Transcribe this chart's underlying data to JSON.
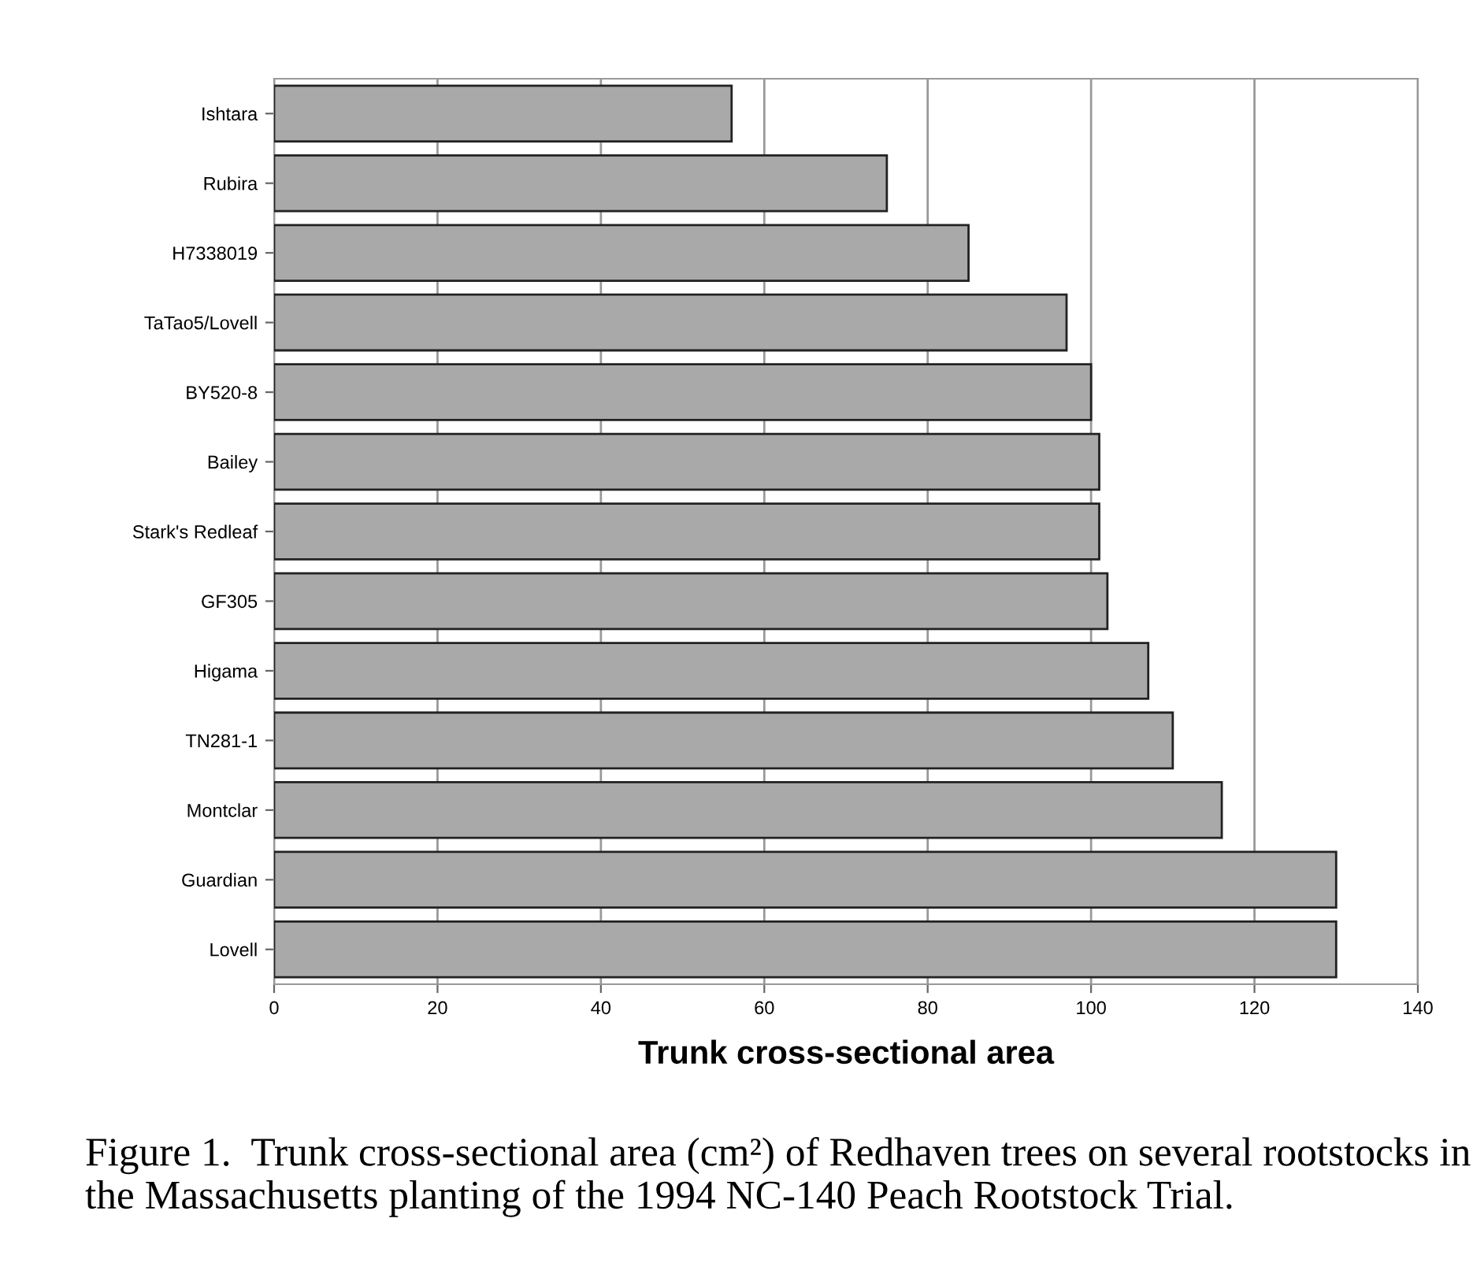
{
  "chart_data": {
    "type": "bar",
    "orientation": "horizontal",
    "categories": [
      "Ishtara",
      "Rubira",
      "H7338019",
      "TaTao5/Lovell",
      "BY520-8",
      "Bailey",
      "Stark's Redleaf",
      "GF305",
      "Higama",
      "TN281-1",
      "Montclar",
      "Guardian",
      "Lovell"
    ],
    "values": [
      56,
      75,
      85,
      97,
      100,
      101,
      101,
      102,
      107,
      110,
      116,
      130,
      130
    ],
    "color": "#a9a9a9",
    "xlim": [
      0,
      140
    ],
    "xticks": [
      0,
      20,
      40,
      60,
      80,
      100,
      120,
      140
    ],
    "xlabel": "Trunk cross-sectional area",
    "grid": "x",
    "annotations": [
      "Figure 1.  Trunk cross-sectional area (cm²) of Redhaven trees on several rootstocks in the Massachusetts planting of the 1994 NC-140 Peach Rootstock Trial."
    ]
  }
}
